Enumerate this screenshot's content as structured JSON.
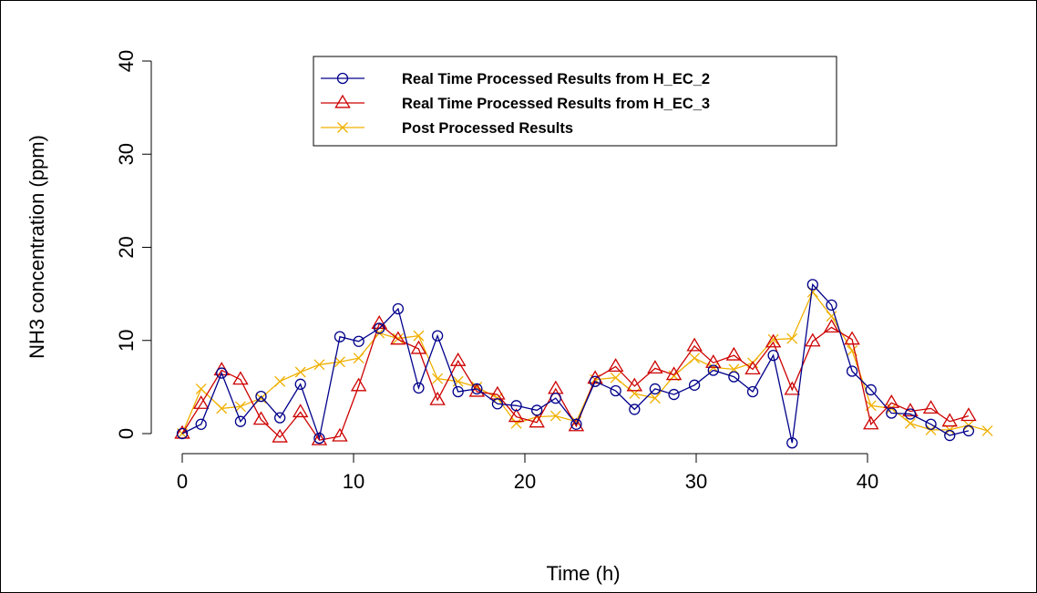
{
  "chart_data": {
    "type": "line",
    "title": "",
    "xlabel": "Time (h)",
    "ylabel": "NH3 concentration (ppm)",
    "xlim": [
      -1,
      49
    ],
    "ylim": [
      0,
      40
    ],
    "x_ticks": [
      0,
      10,
      20,
      30,
      40
    ],
    "y_ticks": [
      0,
      10,
      20,
      30,
      40
    ],
    "grid": false,
    "legend_position": "top-center",
    "series": [
      {
        "name": "Real Time Processed Results from H_EC_2",
        "color": "#00008b",
        "marker": "circle",
        "points": [
          [
            0.0,
            0.0
          ],
          [
            1.1,
            1.0
          ],
          [
            2.3,
            6.5
          ],
          [
            3.4,
            1.3
          ],
          [
            4.6,
            4.0
          ],
          [
            5.7,
            1.7
          ],
          [
            6.9,
            5.3
          ],
          [
            8.0,
            -0.5
          ],
          [
            9.2,
            10.4
          ],
          [
            10.3,
            9.9
          ],
          [
            11.5,
            11.3
          ],
          [
            12.6,
            13.4
          ],
          [
            13.8,
            4.9
          ],
          [
            14.9,
            10.5
          ],
          [
            16.1,
            4.5
          ],
          [
            17.2,
            4.8
          ],
          [
            18.4,
            3.2
          ],
          [
            19.5,
            3.0
          ],
          [
            20.7,
            2.5
          ],
          [
            21.8,
            3.8
          ],
          [
            23.0,
            1.0
          ],
          [
            24.1,
            5.6
          ],
          [
            25.3,
            4.6
          ],
          [
            26.4,
            2.6
          ],
          [
            27.6,
            4.8
          ],
          [
            28.7,
            4.2
          ],
          [
            29.9,
            5.2
          ],
          [
            31.0,
            6.8
          ],
          [
            32.2,
            6.1
          ],
          [
            33.3,
            4.5
          ],
          [
            34.5,
            8.4
          ],
          [
            35.6,
            -1.0
          ],
          [
            36.8,
            16.0
          ],
          [
            37.9,
            13.8
          ],
          [
            39.1,
            6.7
          ],
          [
            40.2,
            4.7
          ],
          [
            41.4,
            2.2
          ],
          [
            42.5,
            2.1
          ],
          [
            43.7,
            1.0
          ],
          [
            44.8,
            -0.2
          ],
          [
            45.9,
            0.3
          ]
        ]
      },
      {
        "name": "Real Time Processed Results from H_EC_3",
        "color": "#cd0000",
        "marker": "triangle",
        "points": [
          [
            0.0,
            0.0
          ],
          [
            1.1,
            3.2
          ],
          [
            2.3,
            6.8
          ],
          [
            3.4,
            5.8
          ],
          [
            4.6,
            1.5
          ],
          [
            5.7,
            -0.4
          ],
          [
            6.9,
            2.3
          ],
          [
            8.0,
            -0.7
          ],
          [
            9.2,
            -0.3
          ],
          [
            10.3,
            5.1
          ],
          [
            11.5,
            11.8
          ],
          [
            12.6,
            10.1
          ],
          [
            13.8,
            9.1
          ],
          [
            14.9,
            3.6
          ],
          [
            16.1,
            7.8
          ],
          [
            17.2,
            4.5
          ],
          [
            18.4,
            4.2
          ],
          [
            19.5,
            1.8
          ],
          [
            20.7,
            1.2
          ],
          [
            21.8,
            4.8
          ],
          [
            23.0,
            0.8
          ],
          [
            24.1,
            5.9
          ],
          [
            25.3,
            7.2
          ],
          [
            26.4,
            5.1
          ],
          [
            27.6,
            7.0
          ],
          [
            28.7,
            6.3
          ],
          [
            29.9,
            9.4
          ],
          [
            31.0,
            7.6
          ],
          [
            32.2,
            8.4
          ],
          [
            33.3,
            6.9
          ],
          [
            34.5,
            9.8
          ],
          [
            35.6,
            4.7
          ],
          [
            36.8,
            9.9
          ],
          [
            37.9,
            11.4
          ],
          [
            39.1,
            10.1
          ],
          [
            40.2,
            1.0
          ],
          [
            41.4,
            3.3
          ],
          [
            42.5,
            2.4
          ],
          [
            43.7,
            2.7
          ],
          [
            44.8,
            1.3
          ],
          [
            45.9,
            1.9
          ]
        ]
      },
      {
        "name": "Post Processed Results",
        "color": "#f0b000",
        "marker": "cross",
        "points": [
          [
            0.0,
            0.0
          ],
          [
            1.1,
            4.8
          ],
          [
            2.3,
            2.7
          ],
          [
            3.4,
            2.9
          ],
          [
            4.6,
            3.8
          ],
          [
            5.7,
            5.6
          ],
          [
            6.9,
            6.6
          ],
          [
            8.0,
            7.4
          ],
          [
            9.2,
            7.7
          ],
          [
            10.3,
            8.1
          ],
          [
            11.5,
            10.8
          ],
          [
            12.6,
            10.2
          ],
          [
            13.8,
            10.5
          ],
          [
            14.9,
            5.9
          ],
          [
            16.1,
            5.6
          ],
          [
            17.2,
            5.0
          ],
          [
            18.4,
            3.8
          ],
          [
            19.5,
            1.1
          ],
          [
            20.7,
            1.8
          ],
          [
            21.8,
            1.9
          ],
          [
            23.0,
            1.3
          ],
          [
            24.1,
            5.8
          ],
          [
            25.3,
            6.0
          ],
          [
            26.4,
            4.3
          ],
          [
            27.6,
            3.8
          ],
          [
            28.7,
            6.2
          ],
          [
            29.9,
            8.1
          ],
          [
            31.0,
            7.1
          ],
          [
            32.2,
            6.9
          ],
          [
            33.3,
            7.6
          ],
          [
            34.5,
            10.1
          ],
          [
            35.6,
            10.2
          ],
          [
            36.8,
            15.2
          ],
          [
            37.9,
            12.6
          ],
          [
            39.1,
            8.9
          ],
          [
            40.2,
            3.0
          ],
          [
            41.4,
            2.7
          ],
          [
            42.5,
            1.1
          ],
          [
            43.7,
            0.4
          ],
          [
            44.8,
            0.4
          ],
          [
            45.9,
            0.9
          ],
          [
            47.0,
            0.3
          ]
        ]
      }
    ]
  }
}
